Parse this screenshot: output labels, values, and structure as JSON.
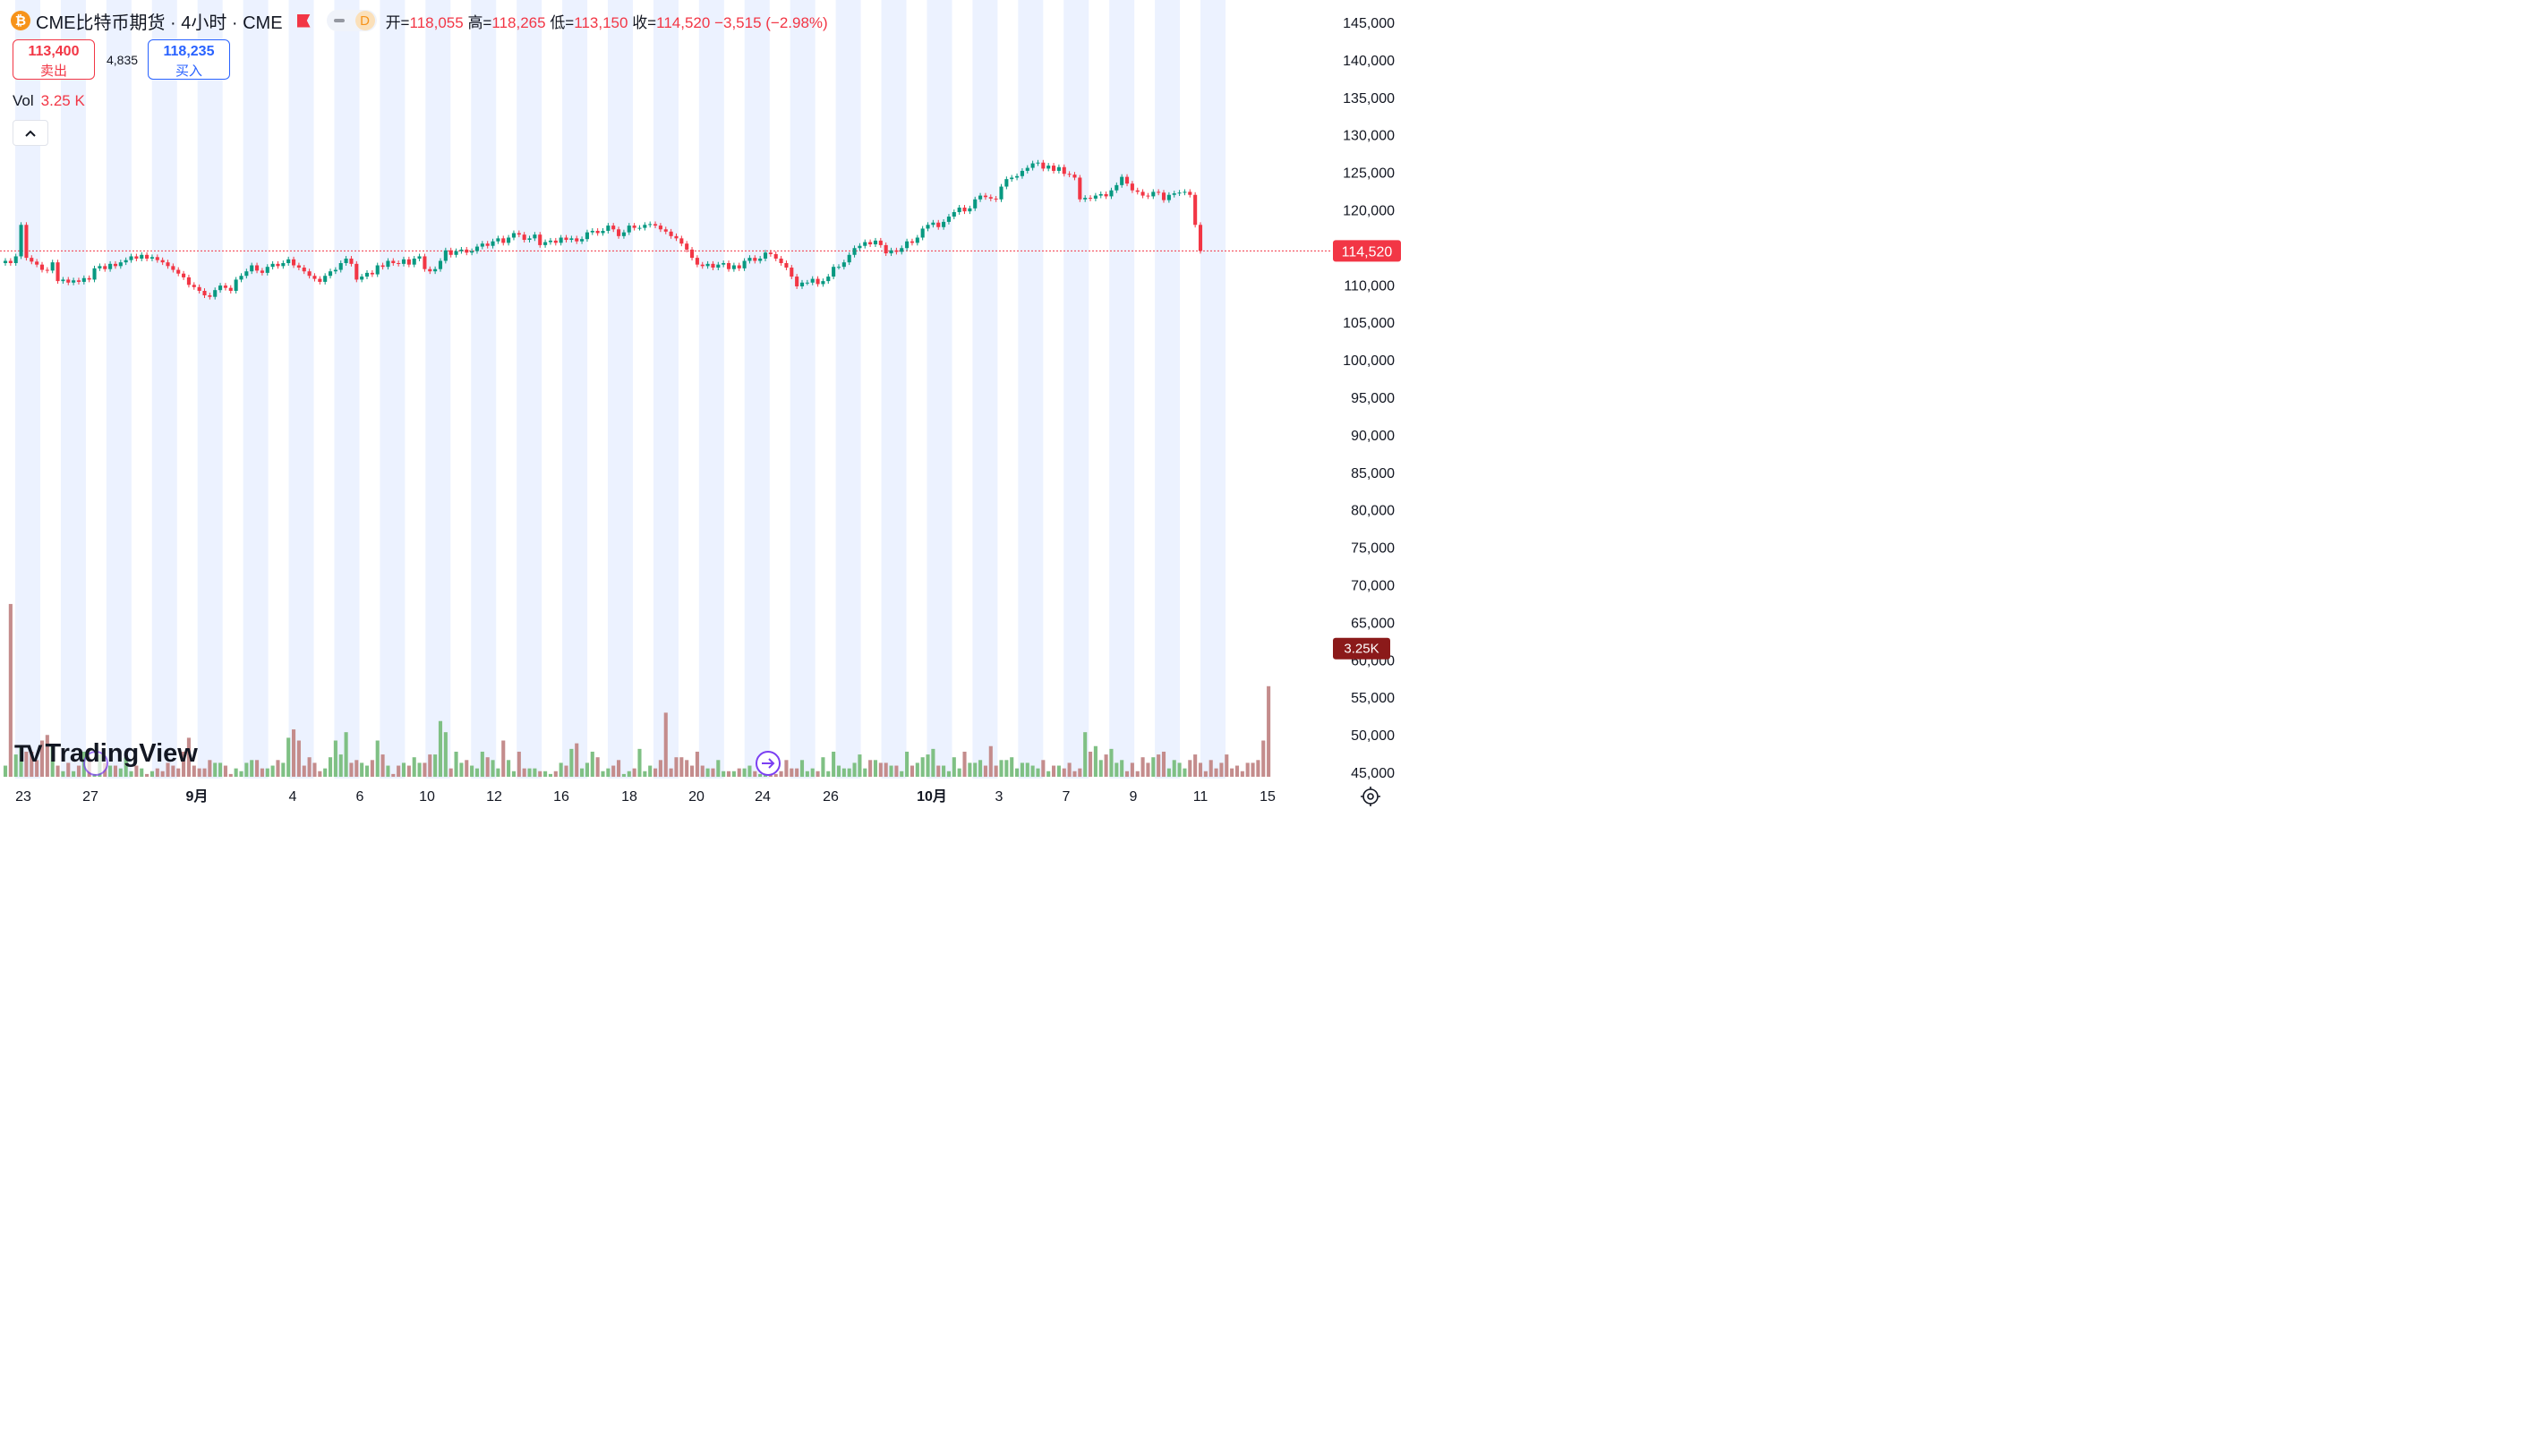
{
  "header": {
    "icon": "bitcoin-icon",
    "title": "CME比特币期货 · 4小时 · CME",
    "interval_badge": "D",
    "open_label": "开=",
    "open": "118,055",
    "high_label": "高=",
    "high": "118,265",
    "low_label": "低=",
    "low": "113,150",
    "close_label": "收=",
    "close": "114,520",
    "change": "−3,515 (−2.98%)"
  },
  "quote": {
    "sell_price": "113,400",
    "sell_label": "卖出",
    "spread": "4,835",
    "buy_price": "118,235",
    "buy_label": "买入"
  },
  "volume_legend": {
    "label": "Vol",
    "value": "3.25 K"
  },
  "logo_text": "TradingView",
  "colors": {
    "up": "#089981",
    "down": "#f23645",
    "vol_up": "#7fc084",
    "vol_down": "#c48c8c",
    "session_shade": "#ecf2ff"
  },
  "chart_data": {
    "type": "candlestick",
    "y_axis": {
      "range": [
        44000,
        147000
      ],
      "ticks": [
        "145,000",
        "140,000",
        "135,000",
        "130,000",
        "125,000",
        "120,000",
        "115,000",
        "110,000",
        "105,000",
        "100,000",
        "95,000",
        "90,000",
        "85,000",
        "80,000",
        "75,000",
        "70,000",
        "65,000",
        "60,000",
        "55,000",
        "50,000",
        "45,000"
      ],
      "tick_values": [
        145000,
        140000,
        135000,
        130000,
        125000,
        120000,
        115000,
        110000,
        105000,
        100000,
        95000,
        90000,
        85000,
        80000,
        75000,
        70000,
        65000,
        60000,
        55000,
        50000,
        45000
      ]
    },
    "x_axis": {
      "ticks": [
        "23",
        "27",
        "9月",
        "4",
        "6",
        "10",
        "12",
        "16",
        "18",
        "20",
        "24",
        "26",
        "10月",
        "3",
        "7",
        "9",
        "11",
        "15"
      ],
      "bold_ticks": [
        "9月",
        "10月"
      ]
    },
    "last_price_label": "114,520",
    "last_price": 114520,
    "last_volume_label": "3.25K",
    "volume_axis_max_k": 7.0,
    "closes": [
      113200,
      112900,
      113800,
      118000,
      113600,
      113100,
      112700,
      112000,
      111900,
      113000,
      110500,
      110700,
      110300,
      110600,
      110400,
      110900,
      110700,
      112200,
      112500,
      112100,
      112800,
      112500,
      113000,
      113300,
      113800,
      113500,
      114000,
      113500,
      113700,
      113300,
      113000,
      112500,
      112000,
      111500,
      111000,
      110000,
      109700,
      109200,
      108600,
      108400,
      109300,
      109900,
      109600,
      109200,
      110700,
      111200,
      111800,
      112600,
      111900,
      111600,
      112400,
      112800,
      112500,
      112900,
      113400,
      112600,
      112300,
      111800,
      111200,
      110800,
      110400,
      111200,
      111800,
      112000,
      112900,
      113500,
      112800,
      110700,
      111100,
      111600,
      111400,
      112600,
      112400,
      113200,
      112900,
      112800,
      113400,
      112700,
      113500,
      113800,
      112100,
      111800,
      112100,
      113200,
      114600,
      114000,
      114500,
      114700,
      114300,
      114500,
      115100,
      115500,
      115200,
      115800,
      116200,
      115600,
      116300,
      116900,
      116700,
      116000,
      116200,
      116700,
      115300,
      115700,
      115900,
      115600,
      116300,
      116000,
      116200,
      115800,
      116100,
      117000,
      117200,
      116900,
      117200,
      117900,
      117400,
      116500,
      117000,
      117900,
      117600,
      117600,
      118000,
      118100,
      117900,
      117400,
      117100,
      116500,
      116200,
      115500,
      114700,
      113600,
      112700,
      112500,
      112800,
      112300,
      112700,
      112900,
      112100,
      112600,
      112200,
      113200,
      113600,
      113200,
      113500,
      114300,
      114100,
      113500,
      112900,
      112300,
      111100,
      109800,
      110300,
      110300,
      110800,
      110100,
      110500,
      111100,
      112400,
      112400,
      113000,
      114000,
      114900,
      115200,
      115700,
      115400,
      115900,
      115300,
      114200,
      114600,
      114400,
      114900,
      115800,
      115600,
      116300,
      117500,
      118000,
      118300,
      117700,
      118400,
      119100,
      119700,
      120300,
      119800,
      120200,
      121400,
      121900,
      121700,
      121500,
      121400,
      123100,
      124100,
      124300,
      124500,
      125200,
      125600,
      126200,
      126300,
      125500,
      125900,
      125200,
      125700,
      124800,
      124700,
      124300,
      121400,
      121600,
      121500,
      121900,
      122100,
      121800,
      122600,
      123300,
      124400,
      123500,
      122600,
      122400,
      121900,
      121800,
      122400,
      122300,
      121300,
      122000,
      122200,
      122300,
      122400,
      122000,
      118000,
      114520
    ],
    "volumes_k": [
      0.4,
      6.2,
      0.8,
      1.1,
      0.9,
      0.9,
      0.6,
      1.3,
      1.5,
      1.1,
      0.4,
      0.2,
      0.5,
      0.2,
      0.4,
      0.9,
      0.7,
      0.1,
      0.8,
      0.5,
      0.4,
      0.4,
      0.3,
      0.7,
      0.2,
      0.4,
      0.3,
      0.1,
      0.2,
      0.3,
      0.2,
      0.5,
      0.4,
      0.3,
      0.9,
      1.4,
      0.4,
      0.3,
      0.3,
      0.6,
      0.5,
      0.5,
      0.4,
      0.1,
      0.3,
      0.2,
      0.5,
      0.6,
      0.6,
      0.3,
      0.3,
      0.4,
      0.6,
      0.5,
      1.4,
      1.7,
      1.3,
      0.4,
      0.7,
      0.5,
      0.2,
      0.3,
      0.7,
      1.3,
      0.8,
      1.6,
      0.5,
      0.6,
      0.5,
      0.4,
      0.6,
      1.3,
      0.8,
      0.4,
      0.1,
      0.4,
      0.5,
      0.4,
      0.7,
      0.5,
      0.5,
      0.8,
      0.8,
      2.0,
      1.6,
      0.3,
      0.9,
      0.5,
      0.6,
      0.4,
      0.3,
      0.9,
      0.7,
      0.6,
      0.3,
      1.3,
      0.6,
      0.2,
      0.9,
      0.3,
      0.3,
      0.3,
      0.2,
      0.2,
      0.1,
      0.2,
      0.5,
      0.4,
      1.0,
      1.2,
      0.3,
      0.5,
      0.9,
      0.7,
      0.2,
      0.3,
      0.4,
      0.6,
      0.1,
      0.2,
      0.3,
      1.0,
      0.2,
      0.4,
      0.3,
      0.6,
      2.3,
      0.3,
      0.7,
      0.7,
      0.6,
      0.4,
      0.9,
      0.4,
      0.3,
      0.3,
      0.6,
      0.2,
      0.2,
      0.2,
      0.3,
      0.3,
      0.4,
      0.2,
      0.1,
      0.2,
      0.3,
      0.1,
      0.2,
      0.6,
      0.3,
      0.3,
      0.6,
      0.2,
      0.3,
      0.2,
      0.7,
      0.2,
      0.9,
      0.4,
      0.3,
      0.3,
      0.5,
      0.8,
      0.3,
      0.6,
      0.6,
      0.5,
      0.5,
      0.4,
      0.4,
      0.2,
      0.9,
      0.4,
      0.5,
      0.7,
      0.8,
      1.0,
      0.4,
      0.4,
      0.2,
      0.7,
      0.3,
      0.9,
      0.5,
      0.5,
      0.6,
      0.4,
      1.1,
      0.4,
      0.6,
      0.6,
      0.7,
      0.3,
      0.5,
      0.5,
      0.4,
      0.3,
      0.6,
      0.2,
      0.4,
      0.4,
      0.3,
      0.5,
      0.2,
      0.3,
      1.6,
      0.9,
      1.1,
      0.6,
      0.8,
      1.0,
      0.5,
      0.6,
      0.2,
      0.5,
      0.2,
      0.7,
      0.5,
      0.7,
      0.8,
      0.9,
      0.3,
      0.6,
      0.5,
      0.3,
      0.6,
      0.8,
      0.5,
      0.2,
      0.6,
      0.3,
      0.5,
      0.8,
      0.3,
      0.4,
      0.2,
      0.5,
      0.5,
      0.6,
      1.3,
      3.25
    ]
  },
  "settings_icon": "settings-gear-icon",
  "go_to_realtime_icon": "arrow-right-circle-icon"
}
